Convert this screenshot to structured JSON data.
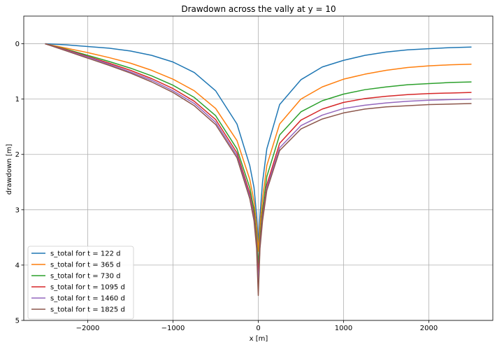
{
  "chart_data": {
    "type": "line",
    "title": "Drawdown across the vally at y = 10",
    "xlabel": "x [m]",
    "ylabel": "drawdown [m]",
    "xlim": [
      -2750,
      2750
    ],
    "ylim": [
      5,
      -0.5
    ],
    "y_inverted": true,
    "grid": true,
    "legend_position": "lower-left",
    "x_ticks": [
      -2000,
      -1000,
      0,
      1000,
      2000
    ],
    "x_tick_labels": [
      "−2000",
      "−1000",
      "0",
      "1000",
      "2000"
    ],
    "y_ticks": [
      0,
      1,
      2,
      3,
      4,
      5
    ],
    "y_tick_labels": [
      "0",
      "1",
      "2",
      "3",
      "4",
      "5"
    ],
    "x": [
      -2500,
      -2250,
      -2000,
      -1750,
      -1500,
      -1250,
      -1000,
      -750,
      -500,
      -250,
      -100,
      -50,
      -20,
      0,
      20,
      50,
      100,
      250,
      500,
      750,
      1000,
      1250,
      1500,
      1750,
      2000,
      2250,
      2500
    ],
    "series": [
      {
        "name": "s_total for t = 122 d",
        "color": "#1f77b4",
        "values": [
          0.0,
          0.02,
          0.05,
          0.08,
          0.13,
          0.21,
          0.33,
          0.52,
          0.85,
          1.45,
          2.2,
          2.6,
          3.1,
          3.6,
          3.1,
          2.5,
          1.9,
          1.1,
          0.65,
          0.42,
          0.3,
          0.21,
          0.15,
          0.11,
          0.09,
          0.07,
          0.06
        ]
      },
      {
        "name": "s_total for t = 365 d",
        "color": "#ff7f0e",
        "values": [
          0.0,
          0.08,
          0.16,
          0.25,
          0.35,
          0.48,
          0.64,
          0.85,
          1.17,
          1.75,
          2.45,
          2.85,
          3.3,
          3.75,
          3.3,
          2.8,
          2.2,
          1.45,
          1.0,
          0.78,
          0.64,
          0.55,
          0.48,
          0.43,
          0.4,
          0.38,
          0.37
        ]
      },
      {
        "name": "s_total for t = 730 d",
        "color": "#2ca02c",
        "values": [
          0.0,
          0.1,
          0.21,
          0.32,
          0.44,
          0.58,
          0.75,
          0.97,
          1.3,
          1.9,
          2.6,
          3.0,
          3.5,
          4.0,
          3.5,
          3.0,
          2.4,
          1.65,
          1.23,
          1.03,
          0.91,
          0.83,
          0.78,
          0.74,
          0.72,
          0.7,
          0.69
        ]
      },
      {
        "name": "s_total for t = 1095 d",
        "color": "#d62728",
        "values": [
          0.0,
          0.11,
          0.23,
          0.35,
          0.48,
          0.63,
          0.81,
          1.04,
          1.37,
          1.97,
          2.7,
          3.1,
          3.6,
          4.2,
          3.6,
          3.1,
          2.55,
          1.8,
          1.38,
          1.18,
          1.06,
          0.99,
          0.95,
          0.92,
          0.9,
          0.89,
          0.88
        ]
      },
      {
        "name": "s_total for t = 1460 d",
        "color": "#9467bd",
        "values": [
          0.0,
          0.12,
          0.24,
          0.37,
          0.51,
          0.66,
          0.85,
          1.08,
          1.42,
          2.02,
          2.75,
          3.15,
          3.65,
          4.35,
          3.65,
          3.15,
          2.6,
          1.88,
          1.48,
          1.29,
          1.17,
          1.11,
          1.07,
          1.04,
          1.02,
          1.01,
          1.0
        ]
      },
      {
        "name": "s_total for t = 1825 d",
        "color": "#8c564b",
        "values": [
          0.0,
          0.13,
          0.26,
          0.39,
          0.53,
          0.69,
          0.88,
          1.12,
          1.46,
          2.06,
          2.8,
          3.2,
          3.7,
          4.55,
          3.7,
          3.2,
          2.65,
          1.93,
          1.54,
          1.36,
          1.25,
          1.18,
          1.14,
          1.12,
          1.1,
          1.09,
          1.08
        ]
      }
    ]
  }
}
